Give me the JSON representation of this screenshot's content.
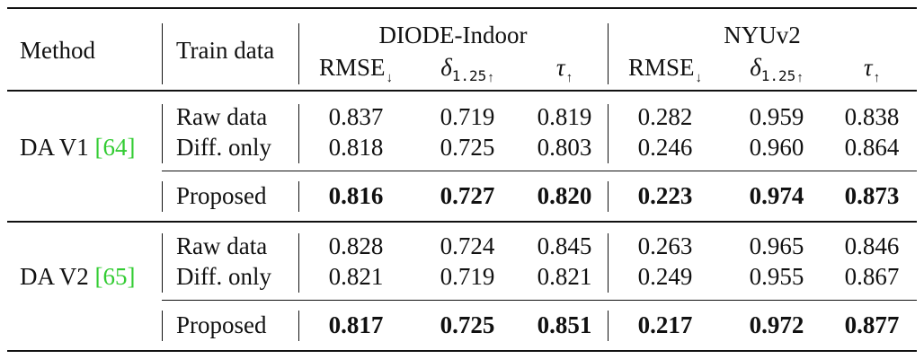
{
  "header": {
    "method": "Method",
    "train_data": "Train data",
    "groups": [
      {
        "name": "DIODE-Indoor"
      },
      {
        "name": "NYUv2"
      }
    ],
    "metrics": {
      "rmse": "RMSE",
      "rmse_arrow": "↓",
      "delta": "δ",
      "delta_sub": "1.25",
      "delta_arrow": "↑",
      "tau": "τ",
      "tau_arrow": "↑"
    }
  },
  "rows": [
    {
      "method": "DA V1",
      "ref_open": "[",
      "ref": "64",
      "ref_close": "]",
      "entries": [
        {
          "train": "Raw data",
          "values": [
            "0.837",
            "0.719",
            "0.819",
            "0.282",
            "0.959",
            "0.838"
          ]
        },
        {
          "train": "Diff. only",
          "values": [
            "0.818",
            "0.725",
            "0.803",
            "0.246",
            "0.960",
            "0.864"
          ]
        },
        {
          "train": "Proposed",
          "values": [
            "0.816",
            "0.727",
            "0.820",
            "0.223",
            "0.974",
            "0.873"
          ]
        }
      ]
    },
    {
      "method": "DA V2",
      "ref_open": "[",
      "ref": "65",
      "ref_close": "]",
      "entries": [
        {
          "train": "Raw data",
          "values": [
            "0.828",
            "0.724",
            "0.845",
            "0.263",
            "0.965",
            "0.846"
          ]
        },
        {
          "train": "Diff. only",
          "values": [
            "0.821",
            "0.719",
            "0.821",
            "0.249",
            "0.955",
            "0.867"
          ]
        },
        {
          "train": "Proposed",
          "values": [
            "0.817",
            "0.725",
            "0.851",
            "0.217",
            "0.972",
            "0.877"
          ]
        }
      ]
    }
  ],
  "colors": {
    "ref_link": "#33cc33",
    "text": "#111111"
  }
}
